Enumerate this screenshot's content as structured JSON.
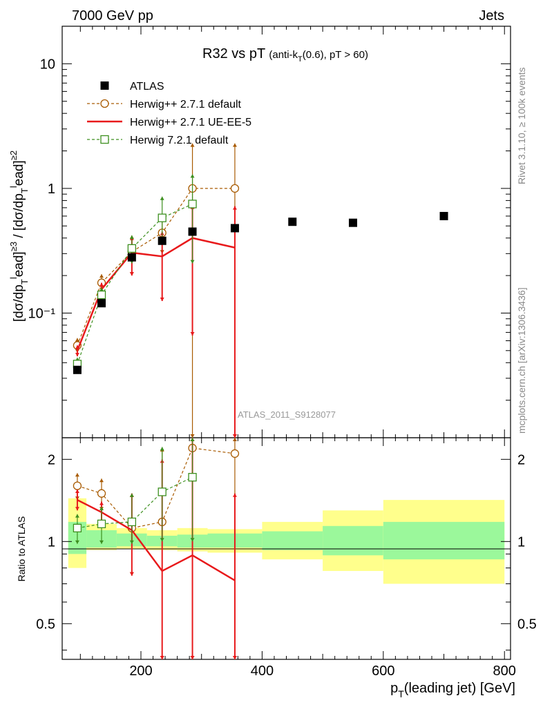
{
  "header": {
    "left": "7000 GeV pp",
    "right": "Jets"
  },
  "side_labels": {
    "rivet": "Rivet 3.1.10, ≥ 100k events",
    "mcplots": "mcplots.cern.ch [arXiv:1306.3436]"
  },
  "chart_data": {
    "type": "scatter",
    "title": "R32 vs pT (anti-k_T(0.6), pT > 60)",
    "watermark": "ATLAS_2011_S9128077",
    "xlabel": "p_T(leading jet) [GeV]",
    "ylabel": "[dσ/dp_T^lead]^{≥3} / [dσ/dp_T^lead]^{≥2}",
    "ratio_ylabel": "Ratio to ATLAS",
    "xlim": [
      70,
      810
    ],
    "ylim": [
      0.01,
      20
    ],
    "ratio_ylim": [
      0.37,
      2.4
    ],
    "y_scale": "log",
    "legend_position": "top-left",
    "main_yticks": [
      {
        "value": 10,
        "label": "10"
      },
      {
        "value": 1,
        "label": "1"
      },
      {
        "value": 0.1,
        "label": "10⁻¹"
      }
    ],
    "ratio_yticks": [
      {
        "value": 2,
        "label": "2"
      },
      {
        "value": 1,
        "label": "1"
      },
      {
        "value": 0.5,
        "label": "0.5"
      }
    ],
    "xticks": [
      200,
      400,
      600,
      800
    ],
    "atlas": {
      "name": "ATLAS",
      "color": "#000000",
      "x": [
        95,
        135,
        185,
        235,
        285,
        355,
        450,
        550,
        700
      ],
      "y": [
        0.035,
        0.12,
        0.28,
        0.38,
        0.45,
        0.48,
        0.54,
        0.53,
        0.6
      ],
      "bins": [
        [
          80,
          110
        ],
        [
          110,
          160
        ],
        [
          160,
          210
        ],
        [
          210,
          260
        ],
        [
          260,
          310
        ],
        [
          310,
          400
        ],
        [
          400,
          500
        ],
        [
          500,
          600
        ],
        [
          600,
          800
        ]
      ],
      "band_inner": [
        [
          0.9,
          1.18
        ],
        [
          0.95,
          1.1
        ],
        [
          0.96,
          1.07
        ],
        [
          0.96,
          1.05
        ],
        [
          0.95,
          1.06
        ],
        [
          0.95,
          1.07
        ],
        [
          0.93,
          1.09
        ],
        [
          0.89,
          1.14
        ],
        [
          0.86,
          1.18
        ]
      ],
      "band_outer": [
        [
          0.8,
          1.44
        ],
        [
          0.93,
          1.16
        ],
        [
          0.94,
          1.12
        ],
        [
          0.93,
          1.1
        ],
        [
          0.92,
          1.12
        ],
        [
          0.91,
          1.11
        ],
        [
          0.86,
          1.18
        ],
        [
          0.78,
          1.3
        ],
        [
          0.7,
          1.42
        ]
      ]
    },
    "series": [
      {
        "name": "Herwig++ 2.7.1 default",
        "color": "#a85a00",
        "style": "dashed",
        "marker": "circle",
        "x": [
          95,
          135,
          185,
          235,
          285,
          355
        ],
        "y": [
          0.055,
          0.175,
          0.31,
          0.44,
          1.0,
          1.0
        ],
        "err_lo": [
          0.048,
          0.15,
          0.2,
          0.3,
          0.01,
          0.01
        ],
        "err_hi": [
          0.063,
          0.205,
          0.42,
          0.58,
          2.3,
          2.3
        ],
        "ratio": [
          1.6,
          1.5,
          1.12,
          1.18,
          2.2,
          2.1
        ],
        "ratio_lo": [
          1.42,
          1.3,
          0.75,
          0.3,
          0.3,
          0.3
        ],
        "ratio_hi": [
          1.78,
          1.7,
          1.5,
          2.2,
          2.4,
          2.4
        ]
      },
      {
        "name": "Herwig++ 2.7.1 UE-EE-5",
        "color": "#e8191b",
        "style": "solid",
        "marker": "none",
        "x": [
          95,
          135,
          185,
          235,
          285,
          355
        ],
        "y": [
          0.05,
          0.155,
          0.305,
          0.285,
          0.4,
          0.335
        ],
        "err_lo": [
          0.045,
          0.135,
          0.2,
          0.125,
          0.066,
          0.01
        ],
        "err_hi": [
          0.055,
          0.175,
          0.41,
          0.45,
          0.73,
          0.72
        ],
        "ratio": [
          1.42,
          1.28,
          1.1,
          0.78,
          0.89,
          0.72
        ],
        "ratio_lo": [
          1.3,
          1.16,
          0.75,
          0.3,
          0.3,
          0.3
        ],
        "ratio_hi": [
          1.55,
          1.4,
          1.5,
          2.0,
          2.4,
          1.5
        ]
      },
      {
        "name": "Herwig 7.2.1 default",
        "color": "#3c8f1e",
        "style": "dashed",
        "marker": "square",
        "x": [
          95,
          135,
          185,
          235,
          285
        ],
        "y": [
          0.039,
          0.14,
          0.33,
          0.58,
          0.75
        ],
        "err_lo": [
          0.034,
          0.12,
          0.25,
          0.38,
          0.25
        ],
        "err_hi": [
          0.044,
          0.16,
          0.42,
          0.86,
          1.3
        ],
        "ratio": [
          1.12,
          1.16,
          1.18,
          1.52,
          1.72
        ],
        "ratio_lo": [
          0.98,
          0.98,
          0.98,
          1.0,
          1.0
        ],
        "ratio_hi": [
          1.26,
          1.34,
          1.5,
          2.22,
          2.4
        ]
      }
    ]
  }
}
